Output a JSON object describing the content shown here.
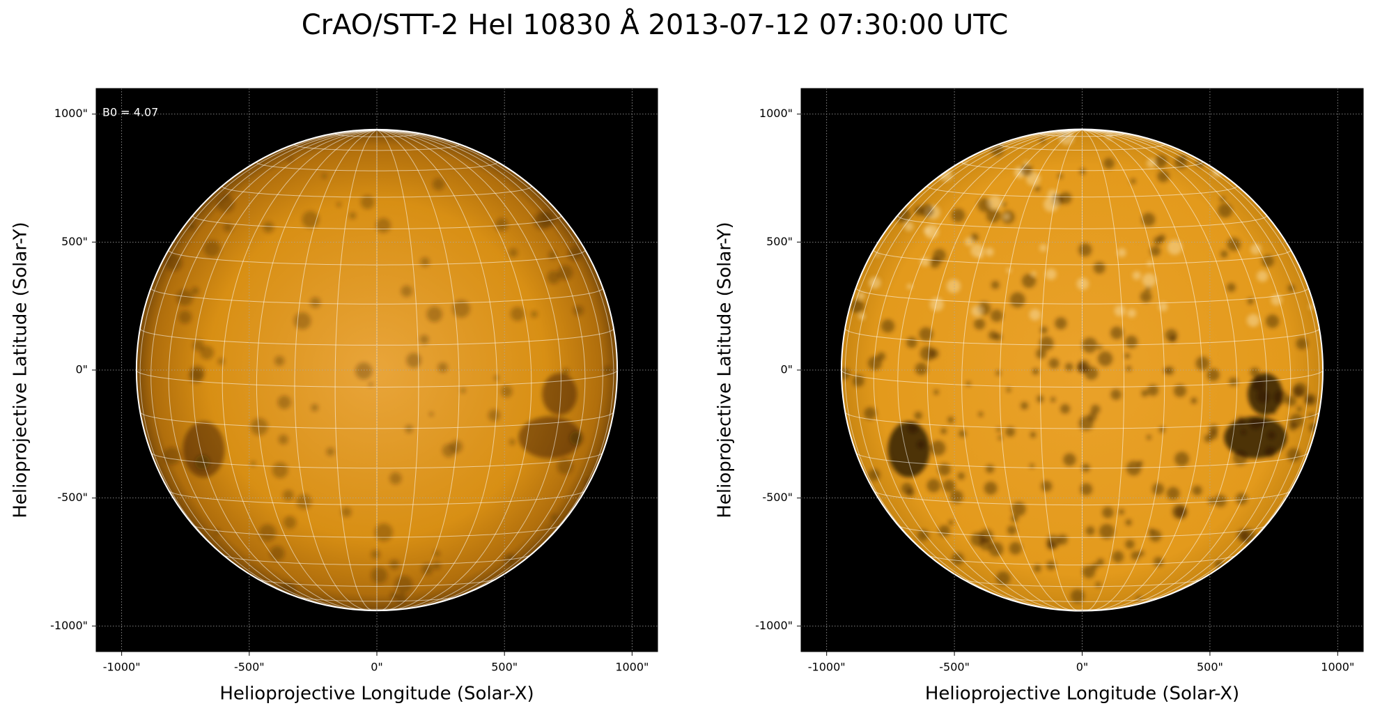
{
  "title": "CrAO/STT-2 HeI 10830 Å 2013-07-12 07:30:00 UTC",
  "chart_data": [
    {
      "type": "image",
      "annotation": "B0 = 4.07",
      "xlabel": "Helioprojective Longitude (Solar-X)",
      "ylabel": "Helioprojective Latitude (Solar-Y)",
      "xlim": [
        -1100,
        1100
      ],
      "ylim": [
        -1100,
        1100
      ],
      "grid": true,
      "xticks": [
        {
          "value": -1000,
          "label": "-1000\""
        },
        {
          "value": -500,
          "label": "-500\""
        },
        {
          "value": 0,
          "label": "0\""
        },
        {
          "value": 500,
          "label": "500\""
        },
        {
          "value": 1000,
          "label": "1000\""
        }
      ],
      "yticks": [
        {
          "value": -1000,
          "label": "-1000\""
        },
        {
          "value": -500,
          "label": "-500\""
        },
        {
          "value": 0,
          "label": "0\""
        },
        {
          "value": 500,
          "label": "500\""
        },
        {
          "value": 1000,
          "label": "1000\""
        }
      ]
    },
    {
      "type": "image",
      "xlabel": "Helioprojective Longitude (Solar-X)",
      "ylabel": "Helioprojective Latitude (Solar-Y)",
      "xlim": [
        -1100,
        1100
      ],
      "ylim": [
        -1100,
        1100
      ],
      "grid": true,
      "xticks": [
        {
          "value": -1000,
          "label": "-1000\""
        },
        {
          "value": -500,
          "label": "-500\""
        },
        {
          "value": 0,
          "label": "0\""
        },
        {
          "value": 500,
          "label": "500\""
        },
        {
          "value": 1000,
          "label": "1000\""
        }
      ],
      "yticks": [
        {
          "value": -1000,
          "label": "-1000\""
        },
        {
          "value": -500,
          "label": "-500\""
        },
        {
          "value": 0,
          "label": "0\""
        },
        {
          "value": 500,
          "label": "500\""
        },
        {
          "value": 1000,
          "label": "1000\""
        }
      ]
    }
  ]
}
